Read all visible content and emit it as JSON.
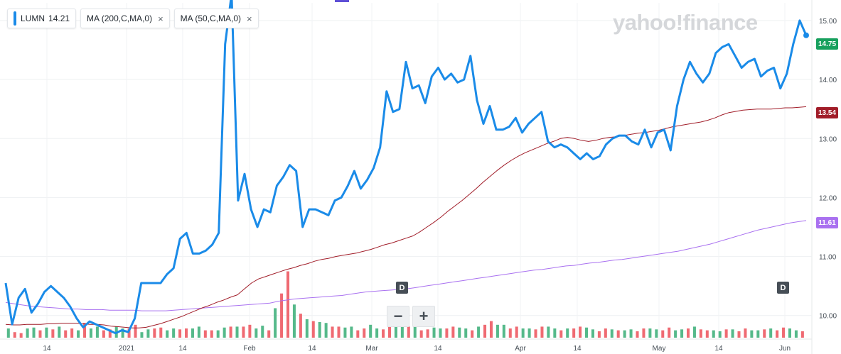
{
  "legend": {
    "symbol": "LUMN",
    "price": "14.21",
    "ma1_label": "MA (200,C,MA,0)",
    "ma2_label": "MA (50,C,MA,0)",
    "close_glyph": "×"
  },
  "brand": "yahoo!finance",
  "zoom": {
    "minus": "−",
    "plus": "+"
  },
  "dividend_marker": "D",
  "price_tags": {
    "last": "14.75",
    "ma50": "13.54",
    "ma200": "11.61"
  },
  "colors": {
    "price": "#1a8be8",
    "ma50": "#a11d29",
    "ma200": "#a971f0",
    "up_volume": "#55b98a",
    "down_volume": "#ef6a72",
    "last_tag": "#17a05d"
  },
  "chart_data": {
    "type": "line",
    "x_tick_labels": [
      "14",
      "2021",
      "14",
      "Feb",
      "14",
      "Mar",
      "14",
      "Apr",
      "14",
      "May",
      "14",
      "Jun"
    ],
    "y_ticks": [
      "10.00",
      "11.00",
      "12.00",
      "13.00",
      "14.00",
      "15.00"
    ],
    "ylim": [
      9.6,
      15.3
    ],
    "grid": true,
    "series": [
      {
        "name": "LUMN",
        "values": [
          10.55,
          9.85,
          10.3,
          10.45,
          10.05,
          10.2,
          10.4,
          10.5,
          10.4,
          10.3,
          10.15,
          9.95,
          9.8,
          9.9,
          9.85,
          9.8,
          9.75,
          9.7,
          9.75,
          9.72,
          9.95,
          10.55,
          10.55,
          10.55,
          10.55,
          10.7,
          10.8,
          11.3,
          11.4,
          11.05,
          11.05,
          11.1,
          11.2,
          11.4,
          14.6,
          15.45,
          11.95,
          12.4,
          11.8,
          11.5,
          11.8,
          11.75,
          12.2,
          12.35,
          12.55,
          12.45,
          11.5,
          11.8,
          11.8,
          11.75,
          11.7,
          11.95,
          12.0,
          12.2,
          12.45,
          12.15,
          12.3,
          12.5,
          12.85,
          13.8,
          13.45,
          13.5,
          14.3,
          13.85,
          13.9,
          13.6,
          14.05,
          14.2,
          14.0,
          14.1,
          13.95,
          14.0,
          14.4,
          13.65,
          13.25,
          13.55,
          13.15,
          13.15,
          13.2,
          13.35,
          13.1,
          13.25,
          13.35,
          13.45,
          12.95,
          12.85,
          12.9,
          12.85,
          12.75,
          12.65,
          12.75,
          12.65,
          12.7,
          12.9,
          13.0,
          13.05,
          13.05,
          12.95,
          12.9,
          13.15,
          12.85,
          13.1,
          13.15,
          12.8,
          13.55,
          14.0,
          14.3,
          14.1,
          13.95,
          14.1,
          14.45,
          14.55,
          14.6,
          14.4,
          14.2,
          14.3,
          14.35,
          14.05,
          14.15,
          14.2,
          13.85,
          14.1,
          14.6,
          15.0,
          14.75
        ]
      },
      {
        "name": "MA (50,C,MA,0)",
        "values": [
          9.85,
          9.84,
          9.84,
          9.85,
          9.85,
          9.85,
          9.86,
          9.86,
          9.87,
          9.87,
          9.87,
          9.86,
          9.85,
          9.85,
          9.84,
          9.82,
          9.81,
          9.8,
          9.79,
          9.79,
          9.8,
          9.83,
          9.86,
          9.9,
          9.94,
          9.98,
          10.03,
          10.08,
          10.13,
          10.17,
          10.22,
          10.26,
          10.31,
          10.35,
          10.45,
          10.55,
          10.62,
          10.66,
          10.7,
          10.74,
          10.78,
          10.81,
          10.85,
          10.88,
          10.92,
          10.95,
          10.97,
          11.0,
          11.02,
          11.04,
          11.06,
          11.09,
          11.12,
          11.16,
          11.2,
          11.23,
          11.27,
          11.31,
          11.35,
          11.42,
          11.5,
          11.58,
          11.67,
          11.77,
          11.86,
          11.95,
          12.05,
          12.15,
          12.26,
          12.36,
          12.46,
          12.55,
          12.63,
          12.7,
          12.76,
          12.81,
          12.86,
          12.91,
          12.95,
          13.0,
          13.02,
          13.0,
          12.97,
          12.95,
          12.97,
          13.0,
          13.02,
          13.03,
          13.05,
          13.07,
          13.09,
          13.1,
          13.12,
          13.14,
          13.17,
          13.2,
          13.22,
          13.24,
          13.26,
          13.28,
          13.31,
          13.35,
          13.4,
          13.44,
          13.46,
          13.48,
          13.49,
          13.5,
          13.5,
          13.5,
          13.51,
          13.52,
          13.52,
          13.53,
          13.54
        ]
      },
      {
        "name": "MA (200,C,MA,0)",
        "values": [
          10.22,
          10.2,
          10.18,
          10.16,
          10.15,
          10.14,
          10.13,
          10.12,
          10.11,
          10.11,
          10.1,
          10.1,
          10.1,
          10.09,
          10.09,
          10.09,
          10.09,
          10.08,
          10.08,
          10.08,
          10.08,
          10.09,
          10.1,
          10.11,
          10.12,
          10.13,
          10.14,
          10.15,
          10.16,
          10.17,
          10.18,
          10.19,
          10.2,
          10.21,
          10.24,
          10.26,
          10.28,
          10.29,
          10.3,
          10.31,
          10.32,
          10.33,
          10.34,
          10.36,
          10.38,
          10.4,
          10.41,
          10.42,
          10.43,
          10.44,
          10.45,
          10.47,
          10.49,
          10.51,
          10.53,
          10.55,
          10.57,
          10.59,
          10.61,
          10.63,
          10.65,
          10.67,
          10.69,
          10.71,
          10.73,
          10.75,
          10.77,
          10.78,
          10.8,
          10.82,
          10.84,
          10.85,
          10.87,
          10.89,
          10.9,
          10.92,
          10.94,
          10.95,
          10.97,
          10.99,
          11.01,
          11.03,
          11.05,
          11.07,
          11.09,
          11.12,
          11.15,
          11.18,
          11.21,
          11.25,
          11.29,
          11.33,
          11.37,
          11.41,
          11.45,
          11.48,
          11.51,
          11.54,
          11.57,
          11.59,
          11.61
        ]
      }
    ],
    "volume": [
      [
        0.5,
        0.3,
        1
      ],
      [
        0.25,
        0.5,
        0
      ],
      [
        0.55,
        0.4,
        1
      ],
      [
        0.55,
        0.45,
        1
      ],
      [
        0.6,
        0.4,
        1
      ],
      [
        0.5,
        0.4,
        0
      ],
      [
        0.8,
        0.5,
        0
      ],
      [
        0.6,
        0.4,
        1
      ],
      [
        0.45,
        0.6,
        0
      ],
      [
        0.5,
        0.5,
        1
      ],
      [
        0.7,
        0.3,
        0
      ],
      [
        0.45,
        0.5,
        1
      ],
      [
        0.55,
        0.4,
        0
      ],
      [
        0.5,
        0.45,
        1
      ],
      [
        0.5,
        0.5,
        0
      ],
      [
        0.6,
        0.4,
        1
      ],
      [
        0.4,
        0.4,
        0
      ],
      [
        0.55,
        0.6,
        1
      ],
      [
        0.6,
        0.6,
        1
      ],
      [
        0.7,
        0.5,
        0
      ],
      [
        0.65,
        0.4,
        1
      ],
      [
        1.6,
        2.4,
        1
      ],
      [
        3.6,
        1.8,
        0
      ],
      [
        1.3,
        1.0,
        0
      ],
      [
        0.9,
        0.85,
        0
      ],
      [
        0.8,
        0.6,
        1
      ],
      [
        0.6,
        0.55,
        0
      ],
      [
        0.6,
        0.4,
        1
      ],
      [
        0.5,
        0.7,
        0
      ],
      [
        0.5,
        0.45,
        1
      ],
      [
        0.9,
        0.8,
        0
      ],
      [
        0.6,
        0.6,
        1
      ],
      [
        0.8,
        0.4,
        1
      ],
      [
        0.45,
        0.55,
        0
      ],
      [
        0.5,
        0.5,
        1
      ],
      [
        0.6,
        0.55,
        0
      ],
      [
        0.5,
        0.4,
        1
      ],
      [
        0.6,
        0.7,
        1
      ],
      [
        0.9,
        0.7,
        0
      ],
      [
        0.7,
        0.5,
        1
      ],
      [
        0.6,
        0.5,
        0
      ],
      [
        0.5,
        0.45,
        1
      ],
      [
        0.6,
        0.6,
        0
      ],
      [
        0.5,
        0.4,
        1
      ],
      [
        0.5,
        0.5,
        1
      ],
      [
        0.6,
        0.55,
        0
      ],
      [
        0.45,
        0.35,
        1
      ],
      [
        0.5,
        0.45,
        0
      ],
      [
        0.4,
        0.4,
        0
      ],
      [
        0.45,
        0.35,
        1
      ],
      [
        0.5,
        0.5,
        0
      ],
      [
        0.45,
        0.4,
        1
      ],
      [
        0.55,
        0.4,
        0
      ],
      [
        0.45,
        0.5,
        1
      ],
      [
        0.6,
        0.45,
        1
      ],
      [
        0.4,
        0.4,
        0
      ],
      [
        0.35,
        0.45,
        1
      ],
      [
        0.45,
        0.35,
        1
      ],
      [
        0.5,
        0.4,
        0
      ],
      [
        0.4,
        0.45,
        1
      ],
      [
        0.5,
        0.4,
        1
      ],
      [
        0.55,
        0.5,
        0
      ],
      [
        0.4,
        0.35,
        1
      ]
    ],
    "dividend_markers_x_index": [
      57,
      112
    ]
  }
}
